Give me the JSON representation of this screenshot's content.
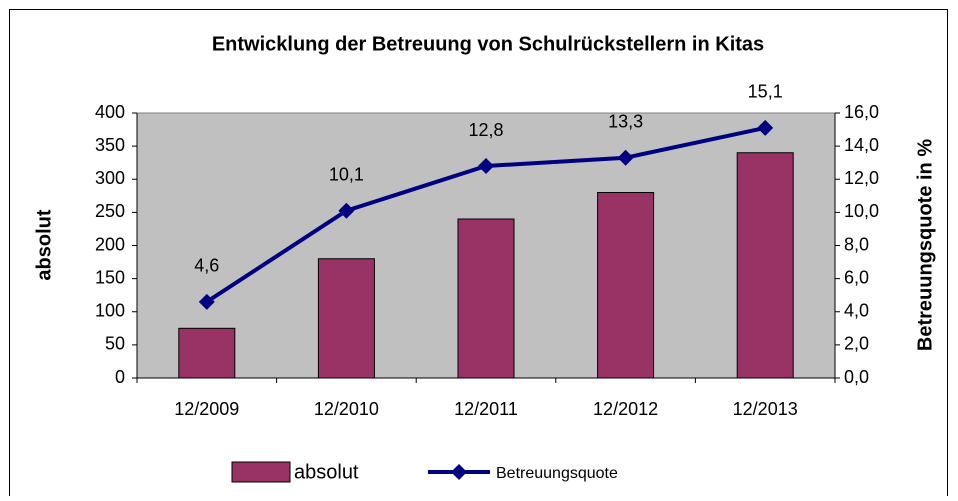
{
  "chart_data": {
    "type": "bar",
    "title": "Entwicklung der Betreuung von Schulrückstellern in Kitas",
    "categories": [
      "12/2009",
      "12/2010",
      "12/2011",
      "12/2012",
      "12/2013"
    ],
    "series": [
      {
        "name": "absolut",
        "type": "bar",
        "color": "#993366",
        "values": [
          75,
          180,
          240,
          280,
          340
        ]
      },
      {
        "name": "Betreuungsquote",
        "type": "line",
        "axis": "y2",
        "color": "#000080",
        "values": [
          4.6,
          10.1,
          12.8,
          13.3,
          15.1
        ],
        "value_labels": [
          "4,6",
          "10,1",
          "12,8",
          "13,3",
          "15,1"
        ]
      }
    ],
    "ylabel": "absolut",
    "y2label": "Betreuungsquote in %",
    "ylim": [
      0,
      400
    ],
    "yticks": [
      0,
      50,
      100,
      150,
      200,
      250,
      300,
      350,
      400
    ],
    "y2lim": [
      0,
      16
    ],
    "y2ticks": [
      {
        "value": 0,
        "label": "0,0"
      },
      {
        "value": 2,
        "label": "2,0"
      },
      {
        "value": 4,
        "label": "4,0"
      },
      {
        "value": 6,
        "label": "6,0"
      },
      {
        "value": 8,
        "label": "8,0"
      },
      {
        "value": 10,
        "label": "10,0"
      },
      {
        "value": 12,
        "label": "12,0"
      },
      {
        "value": 14,
        "label": "14,0"
      },
      {
        "value": 16,
        "label": "16,0"
      }
    ],
    "plot_background": "#c0c0c0",
    "legend": "bottom"
  }
}
